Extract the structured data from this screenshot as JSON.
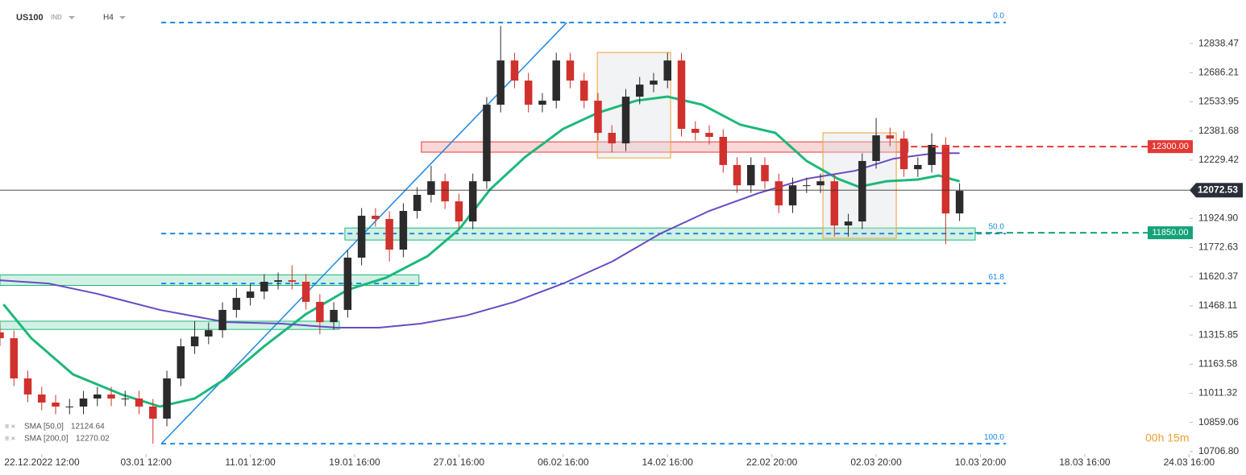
{
  "chart_data": {
    "type": "candlestick",
    "title": "US100",
    "subtitle": "IND",
    "timeframe": "H4",
    "timer": "00h 15m",
    "xlim": [
      0,
      341
    ],
    "ylim": [
      10677,
      13066
    ],
    "xticks": [
      {
        "value": 12,
        "label": "22.12.2022 12:00"
      },
      {
        "value": 42,
        "label": "03.01 12:00"
      },
      {
        "value": 72,
        "label": "11.01 12:00"
      },
      {
        "value": 102,
        "label": "19.01 16:00"
      },
      {
        "value": 132,
        "label": "27.01 16:00"
      },
      {
        "value": 162,
        "label": "06.02 16:00"
      },
      {
        "value": 192,
        "label": "14.02 16:00"
      },
      {
        "value": 222,
        "label": "22.02 20:00"
      },
      {
        "value": 252,
        "label": "02.03 20:00"
      },
      {
        "value": 282,
        "label": "10.03 20:00"
      },
      {
        "value": 312,
        "label": "18.03 16:00"
      },
      {
        "value": 342,
        "label": "24.03 16:00"
      }
    ],
    "yticks": [
      {
        "value": 12838.47,
        "label": "12838.47"
      },
      {
        "value": 12686.21,
        "label": "12686.21"
      },
      {
        "value": 12533.95,
        "label": "12533.95"
      },
      {
        "value": 12381.68,
        "label": "12381.68"
      },
      {
        "value": 12229.42,
        "label": "12229.42"
      },
      {
        "value": 11924.9,
        "label": "11924.90"
      },
      {
        "value": 11772.63,
        "label": "11772.63"
      },
      {
        "value": 11620.37,
        "label": "11620.37"
      },
      {
        "value": 11468.11,
        "label": "11468.11"
      },
      {
        "value": 11315.85,
        "label": "11315.85"
      },
      {
        "value": 11163.58,
        "label": "11163.58"
      },
      {
        "value": 11011.32,
        "label": "11011.32"
      },
      {
        "value": 10859.06,
        "label": "10859.06"
      },
      {
        "value": 10706.8,
        "label": "10706.80"
      }
    ],
    "up_color": "#2b2b2b",
    "down_color": "#d0312d",
    "x": [
      0,
      4,
      8,
      12,
      16,
      20,
      24,
      28,
      32,
      36,
      40,
      44,
      48,
      52,
      56,
      60,
      64,
      68,
      72,
      76,
      80,
      84,
      88,
      92,
      96,
      100,
      104,
      108,
      112,
      116,
      120,
      124,
      128,
      132,
      136,
      140,
      144,
      148,
      152,
      156,
      160,
      164,
      168,
      172,
      176,
      180,
      184,
      188,
      192,
      196,
      200,
      204,
      208,
      212,
      216,
      220,
      224,
      228,
      232,
      236,
      240,
      244,
      248,
      252,
      256,
      260,
      264,
      268,
      272,
      276
    ],
    "open": [
      11330,
      11299,
      11089,
      11005,
      10963,
      10942,
      10942,
      10984,
      11005,
      10984,
      10984,
      10942,
      10879,
      11089,
      11257,
      11308,
      11341,
      11447,
      11510,
      11543,
      11594,
      11602,
      11594,
      11489,
      11383,
      11447,
      11720,
      11939,
      11922,
      11762,
      11964,
      12048,
      12119,
      12014,
      11909,
      12119,
      12519,
      12750,
      12645,
      12519,
      12540,
      12750,
      12645,
      12540,
      12372,
      12317,
      12561,
      12624,
      12645,
      12750,
      12393,
      12372,
      12351,
      12204,
      12098,
      12204,
      12119,
      11993,
      12098,
      12098,
      12119,
      11888,
      11909,
      12225,
      12359,
      12342,
      12182,
      12204,
      12309,
      11951
    ],
    "high": [
      11370,
      11339,
      11129,
      11045,
      11003,
      10982,
      11024,
      11045,
      11045,
      11024,
      11024,
      10982,
      11129,
      11297,
      11390,
      11381,
      11487,
      11560,
      11583,
      11634,
      11642,
      11680,
      11634,
      11529,
      11487,
      11760,
      11979,
      11979,
      11962,
      12004,
      12088,
      12200,
      12159,
      12054,
      12159,
      12559,
      12930,
      12790,
      12685,
      12580,
      12790,
      12790,
      12685,
      12580,
      12412,
      12601,
      12664,
      12685,
      12790,
      12790,
      12433,
      12412,
      12391,
      12244,
      12244,
      12244,
      12159,
      12138,
      12138,
      12159,
      12159,
      11949,
      12265,
      12450,
      12399,
      12382,
      12244,
      12370,
      12349,
      12109
    ],
    "low": [
      11259,
      11049,
      10965,
      10923,
      10902,
      10902,
      10902,
      10944,
      10944,
      10944,
      10902,
      10748,
      10839,
      11049,
      11217,
      11268,
      11301,
      11407,
      11470,
      11503,
      11554,
      11554,
      11449,
      11320,
      11343,
      11407,
      11680,
      11882,
      11700,
      11722,
      11924,
      12008,
      11974,
      11869,
      11869,
      12079,
      12479,
      12605,
      12479,
      12479,
      12500,
      12605,
      12500,
      12332,
      12270,
      12277,
      12521,
      12584,
      12605,
      12353,
      12332,
      12311,
      12164,
      12058,
      12058,
      12079,
      11953,
      11953,
      12058,
      12058,
      11830,
      11830,
      11869,
      12185,
      12302,
      12142,
      12142,
      12164,
      11790,
      11911
    ],
    "close": [
      11299,
      11089,
      11005,
      10963,
      10942,
      10942,
      10984,
      11005,
      10984,
      10984,
      10942,
      10879,
      11089,
      11257,
      11308,
      11341,
      11447,
      11510,
      11543,
      11594,
      11602,
      11594,
      11489,
      11383,
      11447,
      11720,
      11939,
      11922,
      11762,
      11964,
      12048,
      12119,
      12014,
      11909,
      12119,
      12519,
      12750,
      12645,
      12519,
      12540,
      12750,
      12645,
      12540,
      12372,
      12317,
      12561,
      12624,
      12645,
      12750,
      12393,
      12372,
      12351,
      12204,
      12098,
      12204,
      12119,
      11993,
      12098,
      12098,
      12119,
      11888,
      11909,
      12225,
      12359,
      12342,
      12182,
      12204,
      12309,
      11951,
      12069
    ],
    "sma": [
      {
        "name": "SMA [50,0]",
        "last": 12124.64,
        "color": "#1db87a",
        "x": [
          1,
          9,
          21,
          35,
          46,
          56,
          65,
          76,
          88,
          100,
          111,
          123,
          132,
          141,
          151,
          162,
          172,
          183,
          192,
          202,
          213,
          223,
          232,
          241,
          247,
          255,
          264,
          270,
          276
        ],
        "values": [
          11476,
          11299,
          11110,
          11005,
          10942,
          10984,
          11089,
          11257,
          11425,
          11552,
          11615,
          11728,
          11867,
          12077,
          12245,
          12393,
          12477,
          12540,
          12561,
          12519,
          12414,
          12372,
          12225,
          12132,
          12090,
          12119,
          12128,
          12149,
          12119
        ]
      },
      {
        "name": "SMA [200,0]",
        "last": 12270.02,
        "color": "#6a4bc4",
        "x": [
          0,
          14,
          28,
          46,
          65,
          81,
          97,
          109,
          121,
          134,
          148,
          162,
          176,
          190,
          204,
          218,
          232,
          246,
          257,
          269,
          276
        ],
        "values": [
          11602,
          11585,
          11531,
          11447,
          11383,
          11375,
          11354,
          11354,
          11375,
          11417,
          11489,
          11585,
          11699,
          11846,
          11964,
          12056,
          12132,
          12174,
          12237,
          12266,
          12266
        ]
      }
    ],
    "current_price": 12072.53,
    "levels": [
      {
        "value": 12300,
        "label": "12300.00",
        "color": "#e53935",
        "x": 262
      },
      {
        "value": 11850,
        "label": "11850.00",
        "color": "#14a27a",
        "x": 280.5
      }
    ],
    "fib": [
      {
        "level": "0.0",
        "price": 12948
      },
      {
        "level": "50.0",
        "price": 11846
      },
      {
        "level": "61.8",
        "price": 11585
      },
      {
        "level": "100.0",
        "price": 10748
      }
    ],
    "fib_x": [
      46.4,
      289.3
    ],
    "zones": [
      {
        "from": 11575,
        "to": 11630,
        "x": [
          0,
          120.5
        ],
        "color": "#1db87a"
      },
      {
        "from": 11345,
        "to": 11388,
        "x": [
          0,
          97.6
        ],
        "color": "#1db87a"
      },
      {
        "from": 11812,
        "to": 11875,
        "x": [
          99.2,
          280.5
        ],
        "color": "#1db87a"
      },
      {
        "from": 12271,
        "to": 12325,
        "x": [
          121.2,
          261.2
        ],
        "color": "#e53935"
      }
    ],
    "boxes": [
      {
        "from": 12241,
        "to": 12792,
        "x": [
          171.8,
          192.9
        ]
      },
      {
        "from": 11821,
        "to": 12372,
        "x": [
          236.7,
          257.8
        ]
      }
    ],
    "trendline": {
      "x": [
        46.4,
        163
      ],
      "values": [
        10748,
        12948
      ]
    }
  }
}
